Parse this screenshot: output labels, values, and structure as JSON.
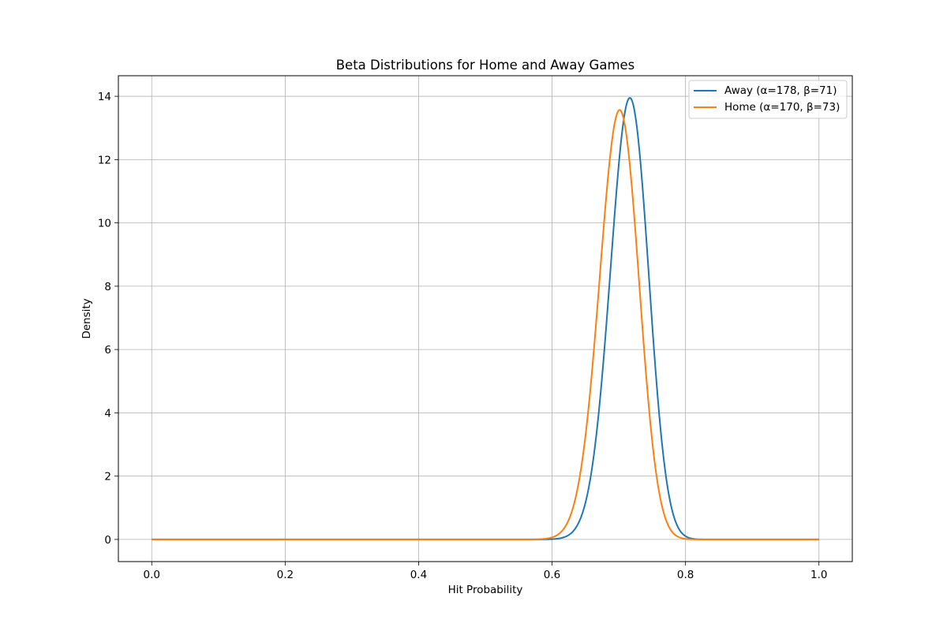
{
  "chart_data": {
    "type": "line",
    "title": "Beta Distributions for Home and Away Games",
    "xlabel": "Hit Probability",
    "ylabel": "Density",
    "xlim": [
      -0.05,
      1.05
    ],
    "ylim": [
      -0.7,
      14.65
    ],
    "xticks": [
      0.0,
      0.2,
      0.4,
      0.6,
      0.8,
      1.0
    ],
    "xtick_labels": [
      "0.0",
      "0.2",
      "0.4",
      "0.6",
      "0.8",
      "1.0"
    ],
    "yticks": [
      0,
      2,
      4,
      6,
      8,
      10,
      12,
      14
    ],
    "ytick_labels": [
      "0",
      "2",
      "4",
      "6",
      "8",
      "10",
      "12",
      "14"
    ],
    "grid": true,
    "legend_position": "top-right",
    "x_domain": [
      0.0,
      1.0
    ],
    "series": [
      {
        "name": "Away (α=178, β=71)",
        "distribution": "beta",
        "alpha": 178,
        "beta": 71,
        "color": "#1f77b4"
      },
      {
        "name": "Home (α=170, β=73)",
        "distribution": "beta",
        "alpha": 170,
        "beta": 73,
        "color": "#ff7f0e"
      }
    ]
  }
}
